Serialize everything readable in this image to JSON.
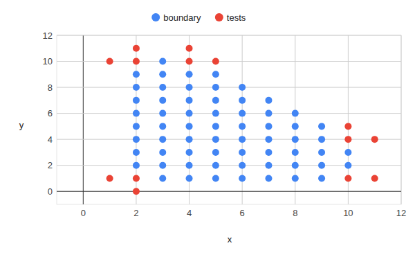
{
  "chart_data": {
    "type": "scatter",
    "x_label": "x",
    "y_label": "y",
    "xlim": [
      -1,
      12
    ],
    "xticks": [
      0,
      2,
      4,
      6,
      8,
      10,
      12
    ],
    "ylim": [
      -1,
      12
    ],
    "yticks": [
      0,
      2,
      4,
      6,
      8,
      10,
      12
    ],
    "grid": true,
    "legend": "top",
    "marker": "circle",
    "series": [
      {
        "name": "boundary",
        "color": "#4285f4",
        "x": [
          2,
          2,
          2,
          2,
          2,
          2,
          2,
          2,
          3,
          3,
          3,
          3,
          3,
          3,
          3,
          3,
          3,
          3,
          4,
          4,
          4,
          4,
          4,
          4,
          4,
          4,
          4,
          5,
          5,
          5,
          5,
          5,
          5,
          5,
          5,
          5,
          6,
          6,
          6,
          6,
          6,
          6,
          6,
          6,
          7,
          7,
          7,
          7,
          7,
          7,
          7,
          8,
          8,
          8,
          8,
          8,
          8,
          9,
          9,
          9,
          9,
          9,
          10,
          10
        ],
        "values": [
          2,
          3,
          4,
          5,
          6,
          7,
          8,
          9,
          1,
          2,
          3,
          4,
          5,
          6,
          7,
          8,
          9,
          10,
          1,
          2,
          3,
          4,
          5,
          6,
          7,
          8,
          9,
          1,
          2,
          3,
          4,
          5,
          6,
          7,
          8,
          9,
          1,
          2,
          3,
          4,
          5,
          6,
          7,
          8,
          1,
          2,
          3,
          4,
          5,
          6,
          7,
          1,
          2,
          3,
          4,
          5,
          6,
          1,
          2,
          3,
          4,
          5,
          2,
          3
        ]
      },
      {
        "name": "tests",
        "color": "#ea4335",
        "x": [
          1,
          2,
          2,
          4,
          4,
          5,
          1,
          2,
          2,
          10,
          10,
          10,
          11,
          11
        ],
        "values": [
          10,
          11,
          10,
          11,
          10,
          10,
          1,
          1,
          0,
          5,
          4,
          1,
          4,
          1
        ]
      }
    ]
  }
}
